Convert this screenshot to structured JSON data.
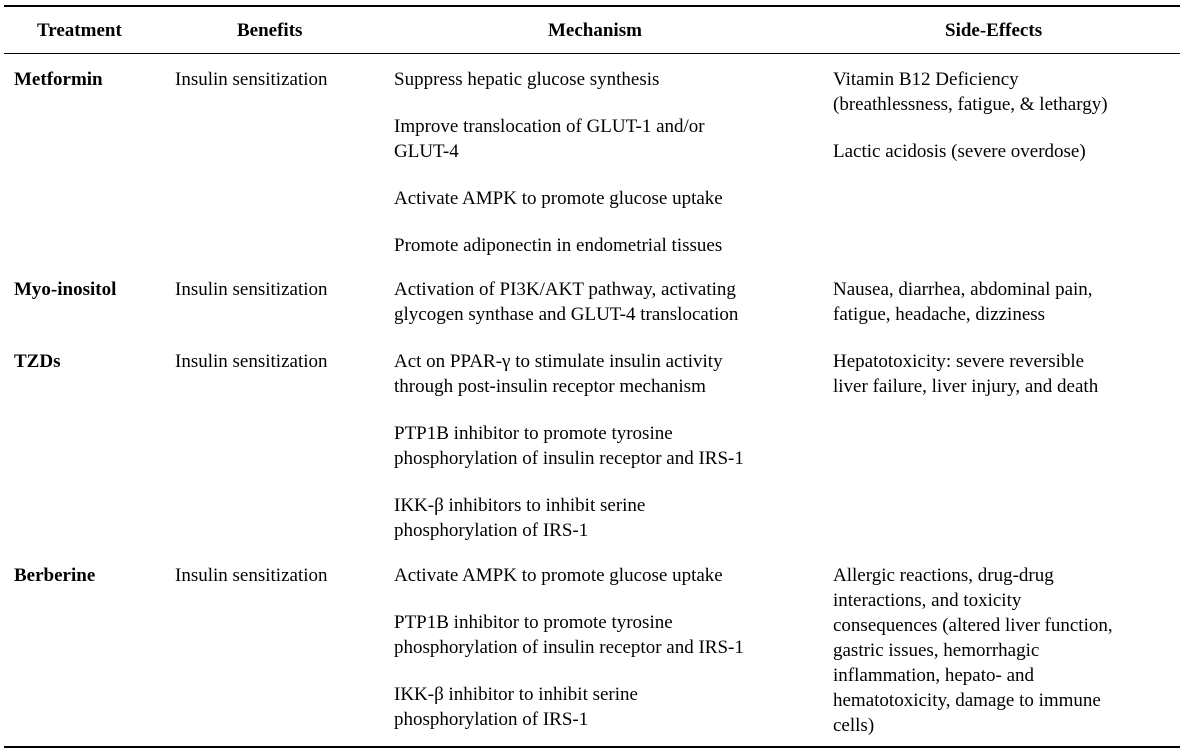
{
  "headers": {
    "treatment": "Treatment",
    "benefits": "Benefits",
    "mechanism": "Mechanism",
    "side_effects": "Side-Effects"
  },
  "rows": [
    {
      "treatment": "Metformin",
      "benefits": "Insulin sensitization",
      "mechanism": [
        [
          "Suppress hepatic glucose synthesis"
        ],
        [
          "Improve translocation of GLUT-1 and/or",
          "GLUT-4"
        ],
        [
          "Activate AMPK to promote glucose uptake"
        ],
        [
          "Promote adiponectin in endometrial tissues"
        ]
      ],
      "side_effects": [
        [
          "Vitamin B12 Deficiency",
          "(breathlessness, fatigue, & lethargy)"
        ],
        [
          "Lactic acidosis (severe overdose)"
        ]
      ]
    },
    {
      "treatment": "Myo-inositol",
      "benefits": "Insulin sensitization",
      "mechanism": [
        [
          "Activation of PI3K/AKT pathway, activating",
          "glycogen synthase and GLUT-4 translocation"
        ]
      ],
      "side_effects": [
        [
          "Nausea, diarrhea, abdominal pain,",
          "fatigue, headache, dizziness"
        ]
      ]
    },
    {
      "treatment": "TZDs",
      "benefits": "Insulin sensitization",
      "mechanism": [
        [
          "Act on PPAR-γ to stimulate insulin activity",
          "through post-insulin receptor mechanism"
        ],
        [
          "PTP1B inhibitor to promote tyrosine",
          "phosphorylation of insulin receptor and IRS-1"
        ],
        [
          "IKK-β inhibitors to inhibit serine",
          "phosphorylation of IRS-1"
        ]
      ],
      "side_effects": [
        [
          "Hepatotoxicity: severe reversible",
          "liver failure, liver injury, and death"
        ]
      ]
    },
    {
      "treatment": "Berberine",
      "benefits": "Insulin sensitization",
      "mechanism": [
        [
          "Activate AMPK to promote glucose uptake"
        ],
        [
          "PTP1B inhibitor to promote tyrosine",
          "phosphorylation of insulin receptor and IRS-1"
        ],
        [
          "IKK-β inhibitor to inhibit serine",
          "phosphorylation of IRS-1"
        ]
      ],
      "side_effects": [
        [
          "Allergic reactions, drug-drug",
          "interactions, and toxicity",
          "consequences (altered liver function,",
          "gastric issues, hemorrhagic",
          "inflammation, hepato- and",
          "hematotoxicity, damage to immune",
          "cells)"
        ]
      ]
    }
  ]
}
